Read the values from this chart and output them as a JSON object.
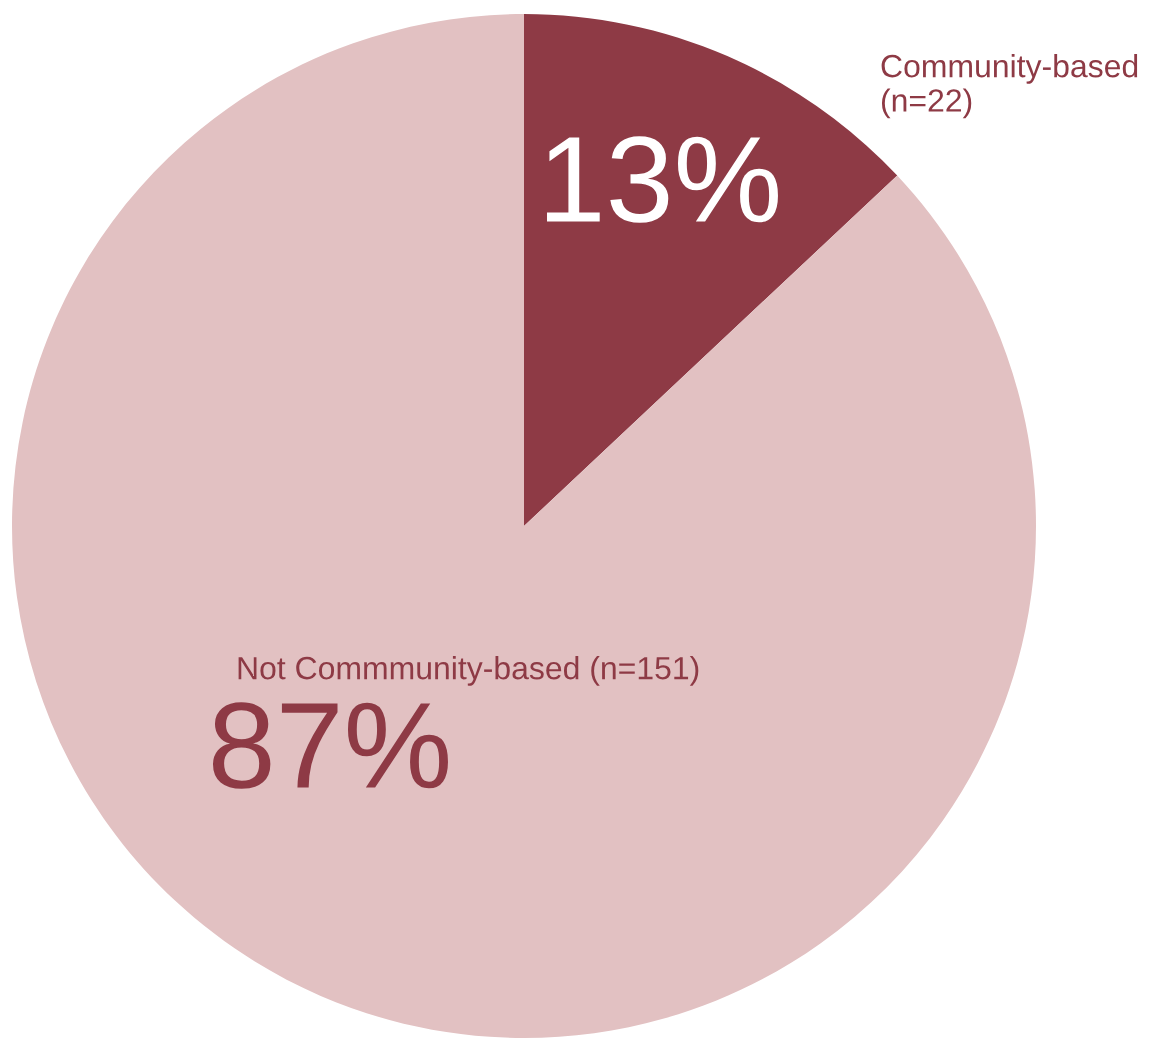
{
  "chart_data": {
    "type": "pie",
    "categories": [
      "Community-based\n(n=22)",
      "Not Commmunity-based (n=151)"
    ],
    "values": [
      13,
      87
    ],
    "colors": [
      "#8e3a45",
      "#e2c1c2"
    ],
    "value_labels": [
      "13%",
      "87%"
    ],
    "legend": false
  }
}
